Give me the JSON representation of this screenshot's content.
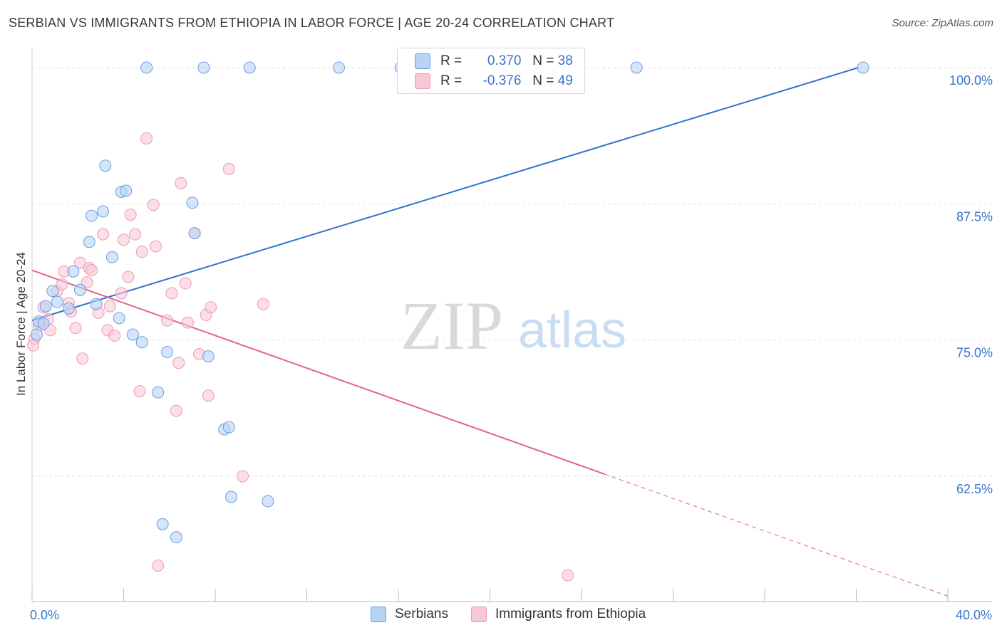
{
  "title": "SERBIAN VS IMMIGRANTS FROM ETHIOPIA IN LABOR FORCE | AGE 20-24 CORRELATION CHART",
  "source": "Source: ZipAtlas.com",
  "watermark": {
    "zip": "ZIP",
    "atlas": "atlas"
  },
  "colors": {
    "serbians_fill": "#b9d3f5",
    "serbians_stroke": "#6a9fe0",
    "serbians_line": "#2f74c9",
    "ethiopia_fill": "#f9c8d6",
    "ethiopia_stroke": "#ee9ab3",
    "ethiopia_line": "#e0648f",
    "axis_text": "#3a74c9",
    "grid": "#e2e2e2"
  },
  "legend": {
    "serbians": {
      "r_label": "R =",
      "r_value": "0.370",
      "n_label": "N =",
      "n_value": "38"
    },
    "ethiopia": {
      "r_label": "R =",
      "r_value": "-0.376",
      "n_label": "N =",
      "n_value": "49"
    }
  },
  "chart_data": {
    "type": "scatter",
    "xlabel": "",
    "ylabel": "In Labor Force | Age 20-24",
    "xlim": [
      0,
      40
    ],
    "ylim": [
      51,
      101.5
    ],
    "x_tick_labels": [
      {
        "value": 0,
        "label": "0.0%"
      },
      {
        "value": 40,
        "label": "40.0%"
      }
    ],
    "y_tick_labels": [
      {
        "value": 100,
        "label": "100.0%"
      },
      {
        "value": 87.5,
        "label": "87.5%"
      },
      {
        "value": 75,
        "label": "75.0%"
      },
      {
        "value": 62.5,
        "label": "62.5%"
      }
    ],
    "legend_position": "bottom-center",
    "series": [
      {
        "name": "Serbians",
        "points": [
          [
            0.2,
            75.5
          ],
          [
            0.3,
            76.7
          ],
          [
            0.5,
            76.5
          ],
          [
            0.6,
            78.1
          ],
          [
            0.9,
            79.5
          ],
          [
            1.1,
            78.5
          ],
          [
            1.6,
            77.9
          ],
          [
            1.8,
            81.3
          ],
          [
            2.1,
            79.6
          ],
          [
            2.5,
            84.0
          ],
          [
            2.6,
            86.4
          ],
          [
            2.8,
            78.3
          ],
          [
            3.1,
            86.8
          ],
          [
            3.2,
            91.0
          ],
          [
            3.5,
            82.6
          ],
          [
            3.8,
            77.0
          ],
          [
            3.9,
            88.6
          ],
          [
            4.1,
            88.7
          ],
          [
            4.4,
            75.5
          ],
          [
            4.8,
            74.8
          ],
          [
            5.0,
            100.0
          ],
          [
            5.5,
            70.2
          ],
          [
            5.7,
            58.1
          ],
          [
            5.9,
            73.9
          ],
          [
            6.3,
            56.9
          ],
          [
            7.0,
            87.6
          ],
          [
            7.1,
            84.8
          ],
          [
            7.5,
            100.0
          ],
          [
            7.7,
            73.5
          ],
          [
            8.4,
            66.8
          ],
          [
            8.6,
            67.0
          ],
          [
            8.7,
            60.6
          ],
          [
            9.5,
            100.0
          ],
          [
            10.3,
            60.2
          ],
          [
            13.4,
            100.0
          ],
          [
            16.1,
            100.0
          ],
          [
            26.4,
            100.0
          ],
          [
            36.3,
            100.0
          ]
        ],
        "trend": {
          "x": [
            0.0,
            36.1
          ],
          "y": [
            76.8,
            100.0
          ]
        }
      },
      {
        "name": "Immigrants from Ethiopia",
        "points": [
          [
            0.1,
            75.1
          ],
          [
            0.3,
            76.3
          ],
          [
            0.5,
            78.0
          ],
          [
            0.7,
            76.9
          ],
          [
            0.8,
            75.9
          ],
          [
            1.1,
            79.5
          ],
          [
            1.3,
            80.1
          ],
          [
            1.4,
            81.3
          ],
          [
            1.6,
            78.4
          ],
          [
            1.7,
            77.6
          ],
          [
            1.9,
            76.1
          ],
          [
            2.1,
            82.1
          ],
          [
            2.2,
            73.3
          ],
          [
            2.4,
            80.3
          ],
          [
            2.5,
            81.6
          ],
          [
            2.6,
            81.4
          ],
          [
            2.9,
            77.5
          ],
          [
            3.1,
            84.7
          ],
          [
            3.3,
            75.9
          ],
          [
            3.4,
            78.1
          ],
          [
            3.6,
            75.4
          ],
          [
            3.9,
            79.3
          ],
          [
            4.0,
            84.2
          ],
          [
            4.2,
            80.8
          ],
          [
            4.3,
            86.5
          ],
          [
            4.5,
            84.7
          ],
          [
            4.7,
            70.3
          ],
          [
            4.8,
            83.1
          ],
          [
            5.0,
            93.5
          ],
          [
            5.3,
            87.4
          ],
          [
            5.4,
            83.6
          ],
          [
            5.5,
            54.3
          ],
          [
            5.9,
            76.8
          ],
          [
            6.1,
            79.3
          ],
          [
            6.3,
            68.5
          ],
          [
            6.4,
            72.9
          ],
          [
            6.5,
            89.4
          ],
          [
            6.7,
            80.2
          ],
          [
            6.8,
            76.6
          ],
          [
            7.1,
            84.8
          ],
          [
            7.3,
            73.7
          ],
          [
            7.6,
            77.3
          ],
          [
            7.7,
            69.9
          ],
          [
            7.8,
            78.0
          ],
          [
            8.6,
            90.7
          ],
          [
            9.2,
            62.5
          ],
          [
            10.1,
            78.3
          ],
          [
            23.4,
            53.4
          ],
          [
            0.05,
            74.5
          ]
        ],
        "trend": {
          "x": [
            0.0,
            25.0
          ],
          "y": [
            81.4,
            62.7
          ]
        },
        "trend_extension": {
          "x": [
            25.0,
            40.0
          ],
          "y": [
            62.7,
            51.5
          ]
        }
      }
    ]
  },
  "bottom_legend": {
    "serbians_label": "Serbians",
    "ethiopia_label": "Immigrants from Ethiopia"
  }
}
